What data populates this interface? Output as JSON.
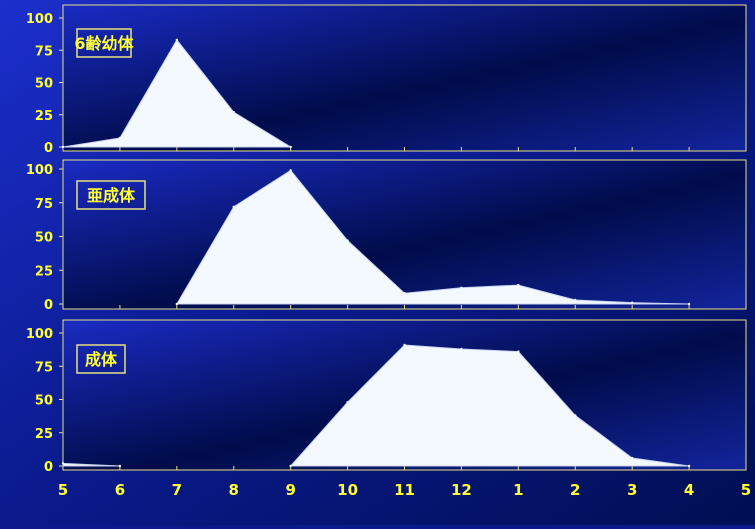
{
  "chart_data": {
    "type": "area",
    "x_ticks": [
      "5",
      "6",
      "7",
      "8",
      "9",
      "10",
      "11",
      "12",
      "1",
      "2",
      "3",
      "4",
      "5"
    ],
    "y_ticks": [
      "0",
      "25",
      "50",
      "75",
      "100"
    ],
    "ylim": [
      0,
      100
    ],
    "grid": false,
    "colors": {
      "axis_text": "#ffff33",
      "frame": "#e8e080",
      "fill": "#f4f8ff",
      "background_dark": "#000e52",
      "background_light": "#1c2fcc"
    },
    "panels": [
      {
        "label": "6齢幼体",
        "values": [
          0,
          7,
          83,
          27,
          0,
          null,
          null,
          null,
          null,
          null,
          null,
          null,
          null
        ]
      },
      {
        "label": "亜成体",
        "values": [
          null,
          null,
          0,
          72,
          99,
          47,
          8,
          12,
          14,
          3,
          1,
          0,
          null
        ]
      },
      {
        "label": "成体",
        "values": [
          2,
          0,
          null,
          null,
          0,
          48,
          91,
          88,
          86,
          38,
          6,
          0,
          null
        ]
      }
    ]
  }
}
